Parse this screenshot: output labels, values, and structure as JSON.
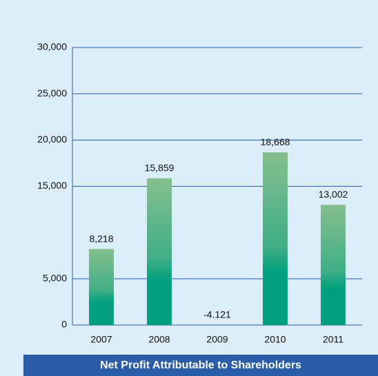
{
  "chart_data": {
    "type": "bar",
    "title": "Net Profit Attributable to Shareholders",
    "categories": [
      "2007",
      "2008",
      "2009",
      "2010",
      "2011"
    ],
    "values": [
      8218,
      15859,
      -4.121,
      18668,
      13002
    ],
    "value_labels": [
      "8,218",
      "15,859",
      "-4.121",
      "18,668",
      "13,002"
    ],
    "color": "#2aa884",
    "ylim": [
      0,
      30000
    ],
    "yticks": [
      0,
      {
        "value": 5000,
        "label": "5,000"
      },
      {
        "value": 15000,
        "label": "15,000"
      },
      {
        "value": 20000,
        "label": "20,000"
      },
      {
        "value": 25000,
        "label": "25,000"
      },
      {
        "value": 30000,
        "label": "30,000"
      }
    ],
    "grid": true
  }
}
